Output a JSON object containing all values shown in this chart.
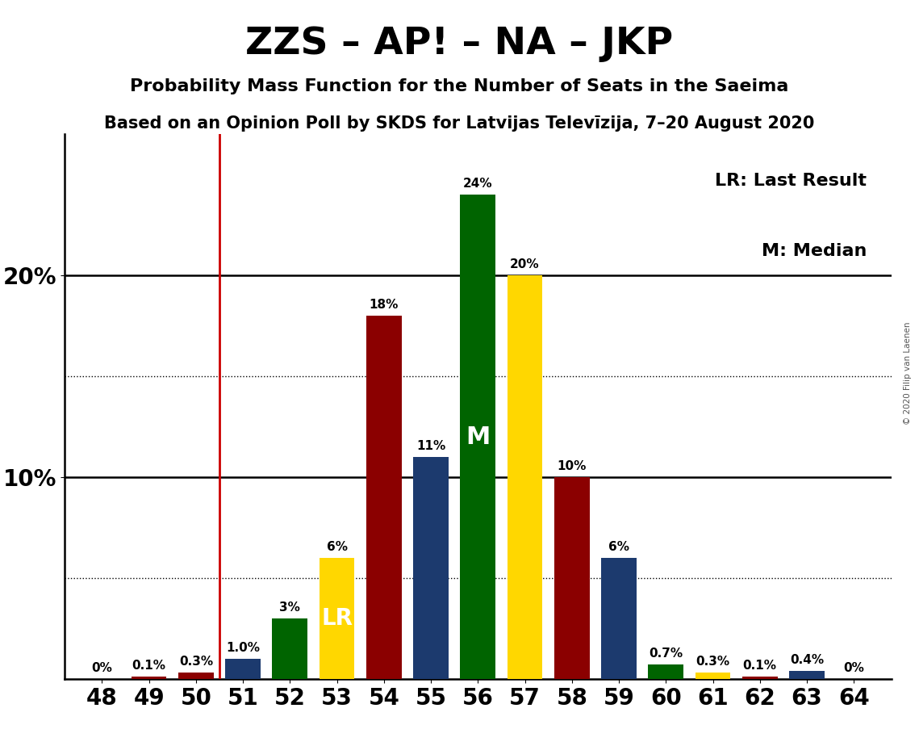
{
  "title": "ZZS – AP! – NA – JKP",
  "subtitle1": "Probability Mass Function for the Number of Seats in the Saeima",
  "subtitle2": "Based on an Opinion Poll by SKDS for Latvijas Televīzija, 7–20 August 2020",
  "copyright": "© 2020 Filip van Laenen",
  "seats": [
    48,
    49,
    50,
    51,
    52,
    53,
    54,
    55,
    56,
    57,
    58,
    59,
    60,
    61,
    62,
    63,
    64
  ],
  "probabilities": [
    0.0,
    0.1,
    0.3,
    1.0,
    3.0,
    6.0,
    18.0,
    11.0,
    24.0,
    20.0,
    10.0,
    6.0,
    0.7,
    0.3,
    0.1,
    0.4,
    0.0
  ],
  "bar_colors": [
    "#006400",
    "#8B0000",
    "#8B0000",
    "#1C3A6E",
    "#006400",
    "#FFD700",
    "#8B0000",
    "#1C3A6E",
    "#006400",
    "#FFD700",
    "#8B0000",
    "#1C3A6E",
    "#006400",
    "#FFD700",
    "#8B0000",
    "#1C3A6E",
    "#006400"
  ],
  "labels": [
    "0%",
    "0.1%",
    "0.3%",
    "1.0%",
    "3%",
    "6%",
    "18%",
    "11%",
    "24%",
    "20%",
    "10%",
    "6%",
    "0.7%",
    "0.3%",
    "0.1%",
    "0.4%",
    "0%"
  ],
  "median_seat": 56,
  "last_result_seat": 53,
  "vline_seat": 51,
  "dotted_yticks": [
    5,
    15
  ],
  "solid_yticks": [
    10,
    20
  ],
  "ylim": [
    0,
    27
  ],
  "background_color": "#FFFFFF",
  "lr_label": "LR",
  "m_label": "M",
  "lr_label_color": "#FFFFFF",
  "m_label_color": "#FFFFFF",
  "legend_lr": "LR: Last Result",
  "legend_m": "M: Median"
}
